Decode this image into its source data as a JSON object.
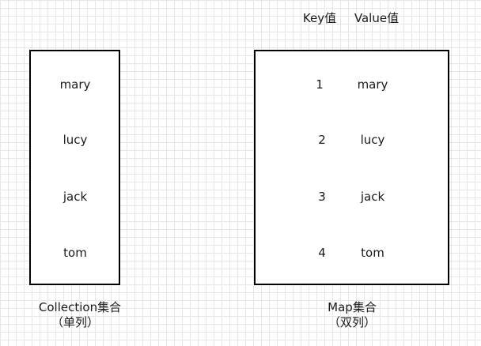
{
  "map_headers": {
    "key": "Key值",
    "value": "Value值"
  },
  "collection": {
    "items": [
      "mary",
      "lucy",
      "jack",
      "tom"
    ],
    "caption_line1": "Collection集合",
    "caption_line2": "（单列）"
  },
  "map": {
    "entries": [
      {
        "key": "1",
        "value": "mary"
      },
      {
        "key": "2",
        "value": "lucy"
      },
      {
        "key": "3",
        "value": "jack"
      },
      {
        "key": "4",
        "value": "tom"
      }
    ],
    "caption_line1": "Map集合",
    "caption_line2": "（双列）"
  }
}
